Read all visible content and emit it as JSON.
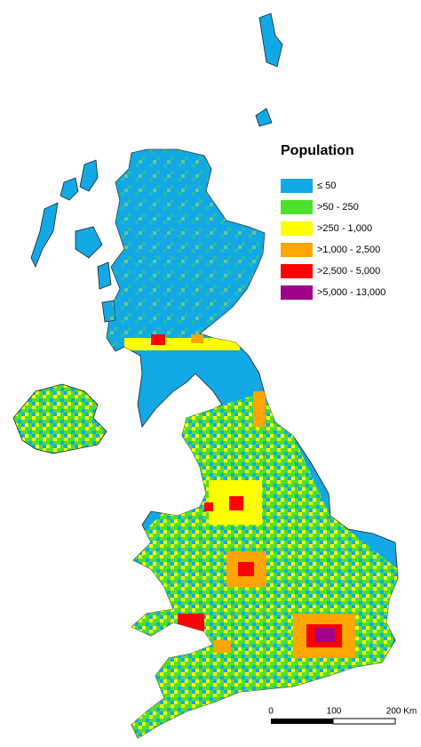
{
  "legend": {
    "title": "Population",
    "items": [
      {
        "label": "≤ 50",
        "color": "#12a8e6"
      },
      {
        "label": ">50 - 250",
        "color": "#4fe02c"
      },
      {
        "label": ">250 - 1,000",
        "color": "#ffff00"
      },
      {
        "label": ">1,000 - 2,500",
        "color": "#ffa500"
      },
      {
        "label": ">2,500 - 5,000",
        "color": "#ff0000"
      },
      {
        "label": ">5,000 - 13,000",
        "color": "#a0008c"
      }
    ]
  },
  "scale_bar": {
    "labels": [
      "0",
      "100",
      "200 Km"
    ]
  }
}
